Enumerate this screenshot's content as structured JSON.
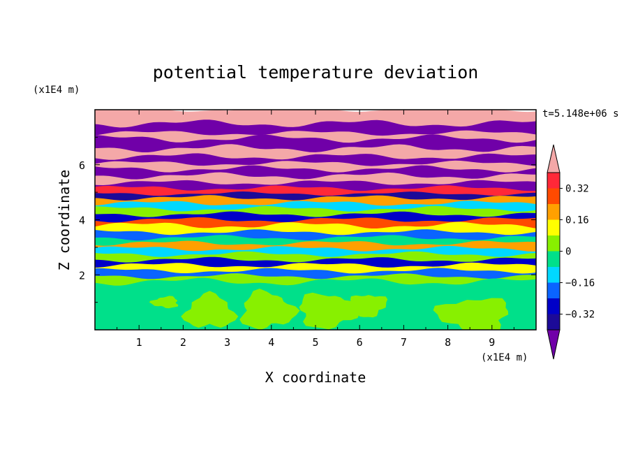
{
  "chart_data": {
    "type": "heatmap",
    "title": "potential temperature deviation",
    "xlabel": "X coordinate",
    "ylabel": "Z coordinate",
    "x_unit": "(x1E4 m)",
    "y_unit": "(x1E4 m)",
    "time_label": "t=5.148e+06 s",
    "xlim": [
      0,
      10
    ],
    "ylim": [
      0,
      8
    ],
    "x_ticks": [
      1,
      2,
      3,
      4,
      5,
      6,
      7,
      8,
      9
    ],
    "y_ticks": [
      2,
      4,
      6
    ],
    "x_tick_labels": [
      "1",
      "2",
      "3",
      "4",
      "5",
      "6",
      "7",
      "8",
      "9"
    ],
    "y_tick_labels": [
      "2",
      "4",
      "6"
    ],
    "colorbar": {
      "levels": [
        -0.4,
        -0.32,
        -0.24,
        -0.16,
        -0.08,
        0,
        0.08,
        0.16,
        0.24,
        0.32,
        0.4
      ],
      "labels": [
        "0.32",
        "0.16",
        "0",
        "−0.16",
        "−0.32"
      ],
      "label_values": [
        0.32,
        0.16,
        0,
        -0.16,
        -0.32
      ],
      "extend": "both",
      "colors": {
        "under": "#7000a8",
        "bins": [
          "#1c0a98",
          "#0000c8",
          "#0a64ff",
          "#00d8ff",
          "#00e08a",
          "#88f000",
          "#ffff00",
          "#ffa000",
          "#ff4a00",
          "#ff2838"
        ],
        "over": "#f4a8a8"
      }
    },
    "bands": [
      {
        "z0": 7.85,
        "z1": 8.0,
        "v": 0.5
      },
      {
        "z0": 7.5,
        "z1": 7.85,
        "v": 0.5
      },
      {
        "z0": 7.15,
        "z1": 7.5,
        "v": -0.5
      },
      {
        "z0": 6.95,
        "z1": 7.15,
        "v": 0.5
      },
      {
        "z0": 6.6,
        "z1": 6.95,
        "v": -0.5
      },
      {
        "z0": 6.3,
        "z1": 6.6,
        "v": 0.5
      },
      {
        "z0": 6.05,
        "z1": 6.3,
        "v": -0.5
      },
      {
        "z0": 5.85,
        "z1": 6.05,
        "v": 0.5
      },
      {
        "z0": 5.6,
        "z1": 5.85,
        "v": -0.5
      },
      {
        "z0": 5.35,
        "z1": 5.6,
        "v": 0.5
      },
      {
        "z0": 5.15,
        "z1": 5.35,
        "v": -0.5
      },
      {
        "z0": 4.95,
        "z1": 5.15,
        "v": 0.36
      },
      {
        "z0": 4.8,
        "z1": 4.95,
        "v": -0.36
      },
      {
        "z0": 4.6,
        "z1": 4.8,
        "v": 0.2
      },
      {
        "z0": 4.4,
        "z1": 4.6,
        "v": -0.1
      },
      {
        "z0": 4.2,
        "z1": 4.4,
        "v": 0.05
      },
      {
        "z0": 4.0,
        "z1": 4.2,
        "v": -0.28
      },
      {
        "z0": 3.8,
        "z1": 4.0,
        "v": 0.28
      },
      {
        "z0": 3.55,
        "z1": 3.8,
        "v": 0.12
      },
      {
        "z0": 3.35,
        "z1": 3.55,
        "v": -0.2
      },
      {
        "z0": 3.15,
        "z1": 3.35,
        "v": -0.05
      },
      {
        "z0": 2.95,
        "z1": 3.15,
        "v": 0.2
      },
      {
        "z0": 2.75,
        "z1": 2.95,
        "v": -0.12
      },
      {
        "z0": 2.55,
        "z1": 2.75,
        "v": 0.05
      },
      {
        "z0": 2.35,
        "z1": 2.55,
        "v": -0.3
      },
      {
        "z0": 2.15,
        "z1": 2.35,
        "v": 0.15
      },
      {
        "z0": 1.95,
        "z1": 2.15,
        "v": -0.2
      },
      {
        "z0": 1.75,
        "z1": 1.95,
        "v": 0.02
      },
      {
        "z0": 0.0,
        "z1": 1.75,
        "v": -0.02
      }
    ],
    "blobs": [
      {
        "x": 2.6,
        "z": 0.65,
        "rx": 0.55,
        "rz": 0.6,
        "v": 0.06
      },
      {
        "x": 3.9,
        "z": 0.7,
        "rx": 0.6,
        "rz": 0.65,
        "v": 0.06
      },
      {
        "x": 5.3,
        "z": 0.7,
        "rx": 0.7,
        "rz": 0.6,
        "v": 0.06
      },
      {
        "x": 6.2,
        "z": 0.9,
        "rx": 0.4,
        "rz": 0.4,
        "v": 0.06
      },
      {
        "x": 8.6,
        "z": 0.55,
        "rx": 0.8,
        "rz": 0.6,
        "v": 0.06
      },
      {
        "x": 1.6,
        "z": 1.0,
        "rx": 0.3,
        "rz": 0.2,
        "v": 0.06
      }
    ]
  }
}
